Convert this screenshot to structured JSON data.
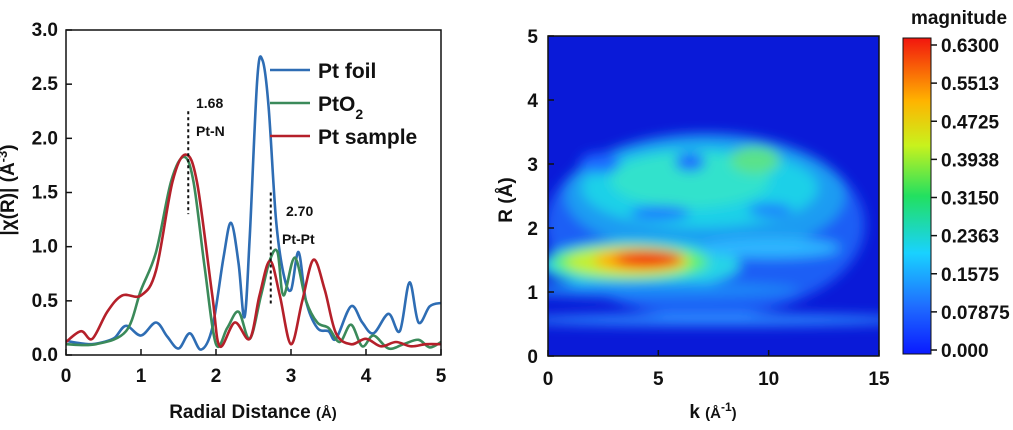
{
  "chart_data": [
    {
      "type": "line",
      "xlabel": "Radial Distance",
      "xlabel_unit": "(Å)",
      "ylabel": "|χ(R)| (Å",
      "ylabel_sup": "-3",
      "ylabel_end": ")",
      "xlim": [
        0,
        5
      ],
      "ylim": [
        0,
        3.0
      ],
      "x_ticks": [
        "0",
        "1",
        "2",
        "3",
        "4",
        "5"
      ],
      "y_ticks": [
        "0.0",
        "0.5",
        "1.0",
        "1.5",
        "2.0",
        "2.5",
        "3.0"
      ],
      "legend_position": "top-right",
      "series": [
        {
          "name": "Pt foil",
          "color": "#2e6db4",
          "points": [
            [
              0,
              0.13
            ],
            [
              0.3,
              0.1
            ],
            [
              0.5,
              0.12
            ],
            [
              0.65,
              0.16
            ],
            [
              0.8,
              0.27
            ],
            [
              1.0,
              0.18
            ],
            [
              1.2,
              0.3
            ],
            [
              1.35,
              0.17
            ],
            [
              1.5,
              0.06
            ],
            [
              1.65,
              0.2
            ],
            [
              1.8,
              0.05
            ],
            [
              1.95,
              0.25
            ],
            [
              2.1,
              0.9
            ],
            [
              2.2,
              1.22
            ],
            [
              2.3,
              0.85
            ],
            [
              2.38,
              0.35
            ],
            [
              2.45,
              1.1
            ],
            [
              2.55,
              2.55
            ],
            [
              2.62,
              2.72
            ],
            [
              2.7,
              2.3
            ],
            [
              2.8,
              1.25
            ],
            [
              2.9,
              0.75
            ],
            [
              3.0,
              0.6
            ],
            [
              3.1,
              0.95
            ],
            [
              3.2,
              0.5
            ],
            [
              3.35,
              0.25
            ],
            [
              3.5,
              0.22
            ],
            [
              3.6,
              0.15
            ],
            [
              3.8,
              0.45
            ],
            [
              3.95,
              0.3
            ],
            [
              4.1,
              0.2
            ],
            [
              4.3,
              0.38
            ],
            [
              4.45,
              0.22
            ],
            [
              4.58,
              0.67
            ],
            [
              4.7,
              0.3
            ],
            [
              4.85,
              0.45
            ],
            [
              5.0,
              0.48
            ]
          ]
        },
        {
          "name": "PtO",
          "name_sub": "2",
          "color": "#3b8a5a",
          "points": [
            [
              0,
              0.1
            ],
            [
              0.4,
              0.1
            ],
            [
              0.8,
              0.22
            ],
            [
              1.0,
              0.6
            ],
            [
              1.2,
              0.95
            ],
            [
              1.4,
              1.6
            ],
            [
              1.57,
              1.83
            ],
            [
              1.7,
              1.6
            ],
            [
              1.85,
              0.8
            ],
            [
              2.0,
              0.1
            ],
            [
              2.15,
              0.25
            ],
            [
              2.3,
              0.4
            ],
            [
              2.45,
              0.15
            ],
            [
              2.6,
              0.55
            ],
            [
              2.72,
              0.88
            ],
            [
              2.82,
              0.95
            ],
            [
              2.9,
              0.55
            ],
            [
              3.05,
              0.9
            ],
            [
              3.2,
              0.5
            ],
            [
              3.35,
              0.3
            ],
            [
              3.5,
              0.25
            ],
            [
              3.65,
              0.12
            ],
            [
              3.8,
              0.28
            ],
            [
              3.95,
              0.08
            ],
            [
              4.1,
              0.18
            ],
            [
              4.3,
              0.06
            ],
            [
              4.5,
              0.1
            ],
            [
              4.7,
              0.14
            ],
            [
              4.85,
              0.07
            ],
            [
              5.0,
              0.12
            ]
          ]
        },
        {
          "name": "Pt sample",
          "color": "#b5202a",
          "points": [
            [
              0,
              0.12
            ],
            [
              0.2,
              0.22
            ],
            [
              0.35,
              0.15
            ],
            [
              0.55,
              0.4
            ],
            [
              0.75,
              0.55
            ],
            [
              1.0,
              0.55
            ],
            [
              1.2,
              0.78
            ],
            [
              1.42,
              1.6
            ],
            [
              1.6,
              1.85
            ],
            [
              1.75,
              1.58
            ],
            [
              1.95,
              0.55
            ],
            [
              2.05,
              0.08
            ],
            [
              2.25,
              0.3
            ],
            [
              2.45,
              0.15
            ],
            [
              2.58,
              0.55
            ],
            [
              2.72,
              0.87
            ],
            [
              2.85,
              0.55
            ],
            [
              3.0,
              0.1
            ],
            [
              3.15,
              0.5
            ],
            [
              3.3,
              0.88
            ],
            [
              3.45,
              0.6
            ],
            [
              3.6,
              0.2
            ],
            [
              3.8,
              0.1
            ],
            [
              4.0,
              0.15
            ],
            [
              4.2,
              0.08
            ],
            [
              4.4,
              0.12
            ],
            [
              4.6,
              0.08
            ],
            [
              4.8,
              0.1
            ],
            [
              5.0,
              0.1
            ]
          ]
        }
      ],
      "annotations": [
        {
          "x": 1.63,
          "value": "1.68",
          "label": "Pt-N"
        },
        {
          "x": 2.73,
          "value": "2.70",
          "label": "Pt-Pt"
        }
      ]
    },
    {
      "type": "heatmap",
      "xlabel": "k",
      "xlabel_unit": "(Å",
      "xlabel_sup": "-1",
      "xlabel_end": ")",
      "ylabel": "R (Å)",
      "xlim": [
        0,
        15
      ],
      "ylim": [
        0,
        5
      ],
      "x_ticks": [
        "0",
        "5",
        "10",
        "15"
      ],
      "y_ticks": [
        "0",
        "1",
        "2",
        "3",
        "4",
        "5"
      ],
      "colorbar": {
        "title": "magnitude",
        "min": 0.0,
        "max": 0.63,
        "ticks": [
          "0.000",
          "0.07875",
          "0.1575",
          "0.2363",
          "0.3150",
          "0.3938",
          "0.4725",
          "0.5513",
          "0.6300"
        ]
      },
      "peaks": [
        {
          "k": 5.0,
          "R": 1.5,
          "magnitude": 0.63
        },
        {
          "k": 6.0,
          "R": 3.0,
          "magnitude": 0.22
        },
        {
          "k": 9.0,
          "R": 3.1,
          "magnitude": 0.3
        },
        {
          "k": 7.5,
          "R": 2.3,
          "magnitude": 0.2
        }
      ]
    }
  ]
}
